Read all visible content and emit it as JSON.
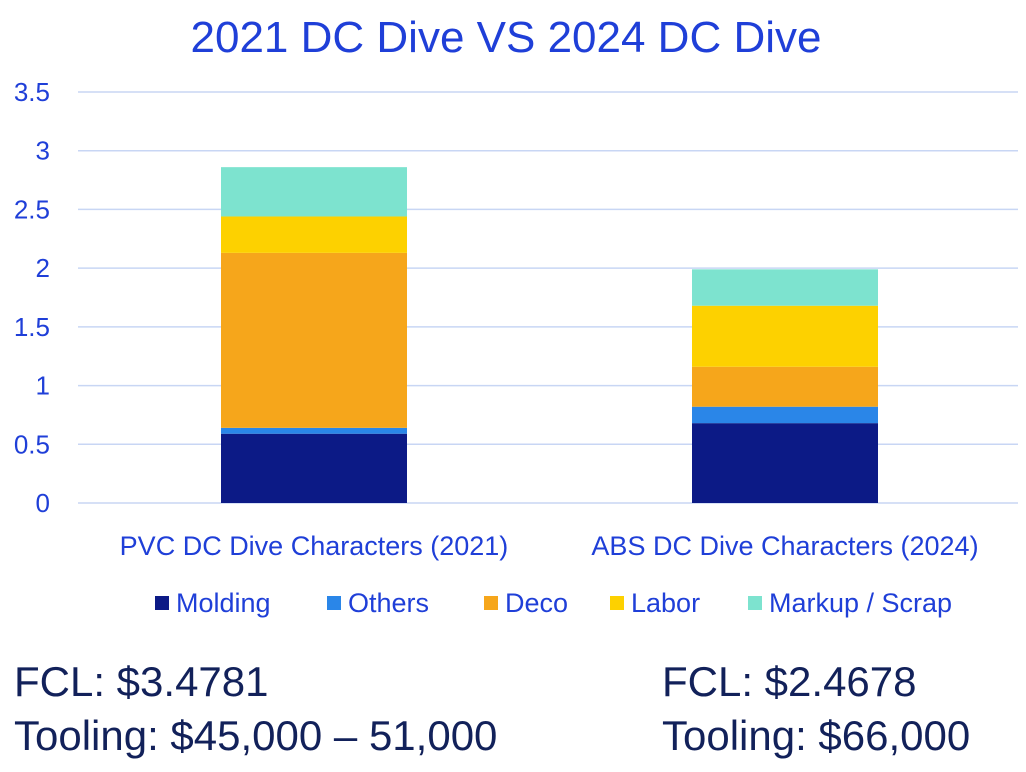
{
  "colors": {
    "title": "#1f3fd8",
    "axis_text": "#1f3fd8",
    "grid": "#c8d6f4",
    "note_text": "#12215a",
    "molding": "#0c1a86",
    "others": "#2a86e8",
    "deco": "#f6a61b",
    "labor": "#fdd100",
    "markup": "#7de3cf"
  },
  "chart_data": {
    "type": "bar",
    "stacked": true,
    "title": "2021 DC Dive VS 2024 DC Dive",
    "categories": [
      "PVC DC Dive Characters (2021)",
      "ABS DC Dive Characters (2024)"
    ],
    "series": [
      {
        "name": "Molding",
        "color_key": "molding",
        "values": [
          0.59,
          0.68
        ]
      },
      {
        "name": "Others",
        "color_key": "others",
        "values": [
          0.05,
          0.14
        ]
      },
      {
        "name": "Deco",
        "color_key": "deco",
        "values": [
          1.49,
          0.34
        ]
      },
      {
        "name": "Labor",
        "color_key": "labor",
        "values": [
          0.31,
          0.52
        ]
      },
      {
        "name": "Markup / Scrap",
        "color_key": "markup",
        "values": [
          0.42,
          0.31
        ]
      }
    ],
    "yticks": [
      "0",
      "0.5",
      "1",
      "1.5",
      "2",
      "2.5",
      "3",
      "3.5"
    ],
    "ylim": [
      0,
      3.5
    ],
    "xlabel": "",
    "ylabel": "",
    "grid": true,
    "legend_position": "bottom"
  },
  "notes": {
    "left": {
      "fcl": "FCL: $3.4781",
      "tooling": "Tooling: $45,000 – 51,000"
    },
    "right": {
      "fcl": "FCL: $2.4678",
      "tooling": "Tooling: $66,000"
    }
  }
}
